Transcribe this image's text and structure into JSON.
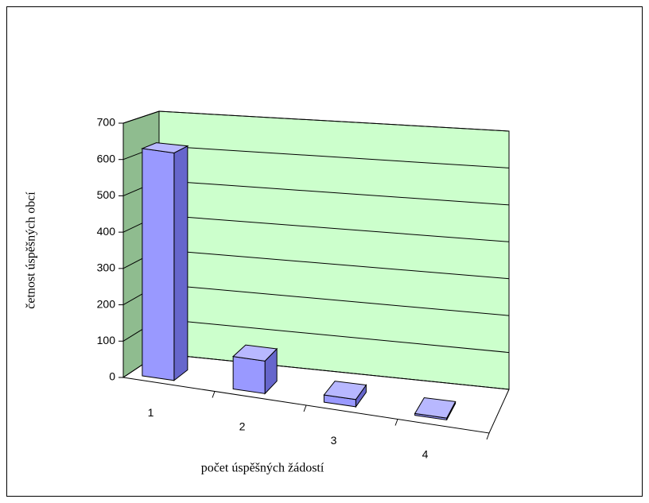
{
  "chart_data": {
    "type": "bar3d",
    "categories": [
      "1",
      "2",
      "3",
      "4"
    ],
    "values": [
      630,
      90,
      20,
      5
    ],
    "color": "#9999ff",
    "ylim": [
      0,
      700
    ],
    "yticks": [
      0,
      100,
      200,
      300,
      400,
      500,
      600,
      700
    ],
    "grid": true,
    "xlabel": "počet úspěšných žádostí",
    "ylabel": "četnost úspěšných obcí"
  }
}
